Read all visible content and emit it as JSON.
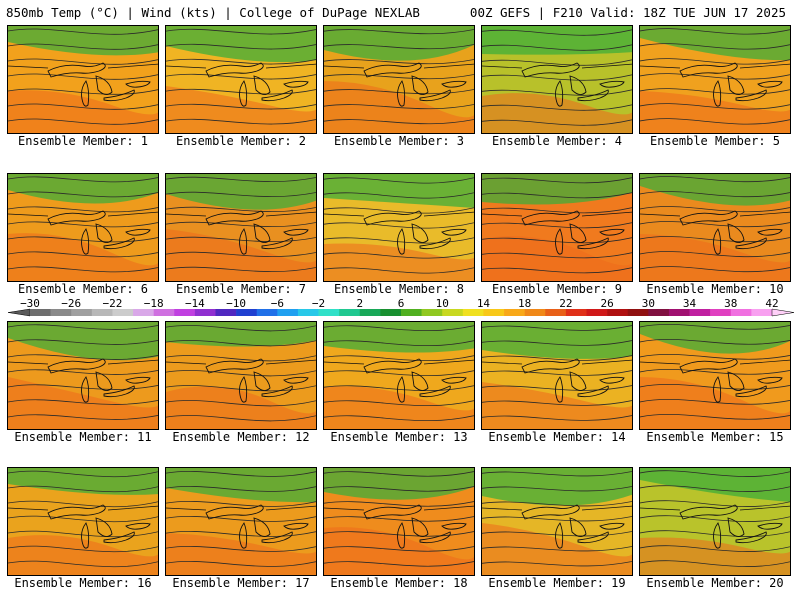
{
  "header": {
    "title_left": "850mb Temp (°C) | Wind (kts) | College of DuPage NEXLAB",
    "title_right": "00Z GEFS | F210 Valid: 18Z TUE JUN 17 2025"
  },
  "panels": [
    {
      "label": "Ensemble Member: 1",
      "bg": "#f2a11c"
    },
    {
      "label": "Ensemble Member: 2",
      "bg": "#f0b423"
    },
    {
      "label": "Ensemble Member: 3",
      "bg": "#e8a21c"
    },
    {
      "label": "Ensemble Member: 4",
      "bg": "#b8c12a"
    },
    {
      "label": "Ensemble Member: 5",
      "bg": "#f0a11e"
    },
    {
      "label": "Ensemble Member: 6",
      "bg": "#ee9b1c"
    },
    {
      "label": "Ensemble Member: 7",
      "bg": "#e99020"
    },
    {
      "label": "Ensemble Member: 8",
      "bg": "#e9bb2a"
    },
    {
      "label": "Ensemble Member: 9",
      "bg": "#f07a1e"
    },
    {
      "label": "Ensemble Member: 10",
      "bg": "#ea8a1e"
    },
    {
      "label": "Ensemble Member: 11",
      "bg": "#ed9a1d"
    },
    {
      "label": "Ensemble Member: 12",
      "bg": "#ec9b1d"
    },
    {
      "label": "Ensemble Member: 13",
      "bg": "#efa81d"
    },
    {
      "label": "Ensemble Member: 14",
      "bg": "#ebb222"
    },
    {
      "label": "Ensemble Member: 15",
      "bg": "#f09a1d"
    },
    {
      "label": "Ensemble Member: 16",
      "bg": "#eaa31d"
    },
    {
      "label": "Ensemble Member: 17",
      "bg": "#ec9b1d"
    },
    {
      "label": "Ensemble Member: 18",
      "bg": "#ef8c1d"
    },
    {
      "label": "Ensemble Member: 19",
      "bg": "#e5b626"
    },
    {
      "label": "Ensemble Member: 20",
      "bg": "#b9c32b"
    }
  ],
  "colorbar": {
    "labels": [
      "−30",
      "−26",
      "−22",
      "−18",
      "−14",
      "−10",
      "−6",
      "−2",
      "2",
      "6",
      "10",
      "14",
      "18",
      "22",
      "26",
      "30",
      "34",
      "38",
      "42"
    ],
    "colors": [
      "#6e6e6e",
      "#8a8a8a",
      "#a0a0a0",
      "#b8b8b8",
      "#cccccc",
      "#d9a8e8",
      "#cf70e0",
      "#c040e0",
      "#9030d0",
      "#5028c0",
      "#2040d0",
      "#2070e8",
      "#20a0f0",
      "#28c8e8",
      "#30e0c8",
      "#20c890",
      "#18a858",
      "#189030",
      "#50b020",
      "#90c820",
      "#c8d820",
      "#f0e020",
      "#f8c818",
      "#f8a818",
      "#f08818",
      "#e86018",
      "#e03018",
      "#d01818",
      "#b01010",
      "#901010",
      "#801040",
      "#a01070",
      "#c020a0",
      "#e040c0",
      "#f070e0",
      "#f8a0f0"
    ]
  }
}
